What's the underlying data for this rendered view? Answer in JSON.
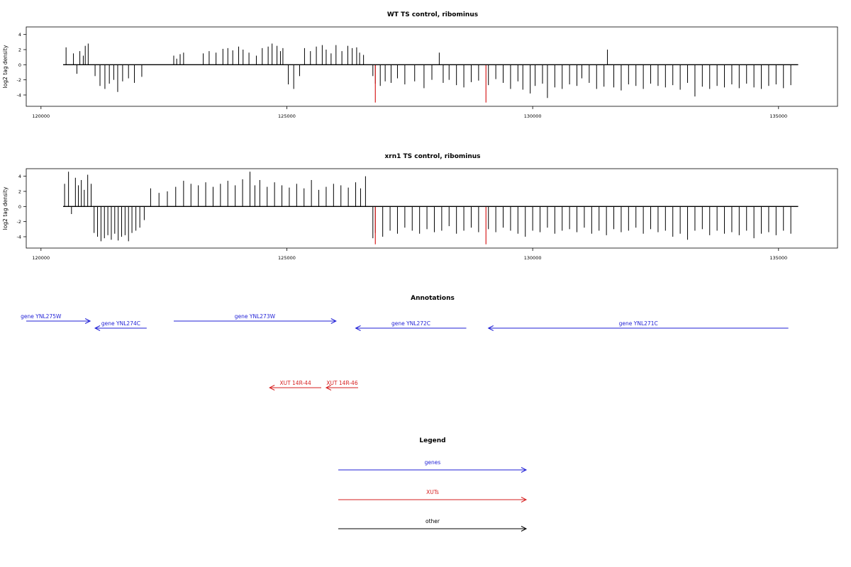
{
  "chart_data": [
    {
      "type": "bar",
      "title": "WT TS control, ribominus",
      "ylabel": "log2 tag density",
      "xlim": [
        119700,
        136200
      ],
      "ylim": [
        -5.5,
        5
      ],
      "yticks": [
        -4,
        -2,
        0,
        2,
        4
      ],
      "xticks": [
        120000,
        125000,
        130000,
        135000
      ],
      "xtick_labels": [
        "120000",
        "125000",
        "130000",
        "135000"
      ],
      "grid": false,
      "baseline": {
        "from": 120450,
        "to": 135400
      },
      "x": [
        120510,
        120660,
        120730,
        120790,
        120860,
        120900,
        120960,
        121100,
        121200,
        121300,
        121390,
        121480,
        121560,
        121660,
        121780,
        121900,
        122050,
        122700,
        122760,
        122830,
        122900,
        123300,
        123420,
        123560,
        123700,
        123800,
        123900,
        124020,
        124110,
        124230,
        124380,
        124500,
        124620,
        124700,
        124800,
        124870,
        124920,
        125030,
        125140,
        125260,
        125360,
        125480,
        125600,
        125720,
        125800,
        125900,
        126000,
        126120,
        126240,
        126330,
        126420,
        126480,
        126560,
        126750,
        126800,
        126900,
        127000,
        127120,
        127250,
        127400,
        127600,
        127790,
        127950,
        128100,
        128180,
        128300,
        128450,
        128600,
        128750,
        128900,
        129100,
        129250,
        129400,
        129550,
        129700,
        129800,
        129950,
        130050,
        130200,
        130300,
        130450,
        130600,
        130750,
        130900,
        131000,
        131150,
        131300,
        131450,
        131520,
        131650,
        131800,
        131950,
        132100,
        132250,
        132400,
        132550,
        132700,
        132850,
        133000,
        133150,
        133300,
        133450,
        133600,
        133750,
        133900,
        134050,
        134200,
        134350,
        134500,
        134650,
        134800,
        134950,
        135100,
        135250
      ],
      "series": [
        {
          "values": [
            2.3,
            1.5,
            -1.2,
            1.8,
            1.2,
            2.5,
            2.8,
            -1.5,
            -2.8,
            -3.2,
            -2.5,
            -2,
            -3.6,
            -2.2,
            -1.8,
            -2.4,
            -1.6,
            1.2,
            0.8,
            1.4,
            1.6,
            1.5,
            1.8,
            1.6,
            2.1,
            2.2,
            1.9,
            2.4,
            2.0,
            1.6,
            1.2,
            2.2,
            2.4,
            2.8,
            2.5,
            1.8,
            2.2,
            -2.6,
            -3.2,
            -1.5,
            2.2,
            1.8,
            2.4,
            2.6,
            2.0,
            1.5,
            2.6,
            1.8,
            2.5,
            2.2,
            2.3,
            1.6,
            1.3,
            -1.5,
            -2.5,
            -2.8,
            -2.2,
            -2.4,
            -1.8,
            -2.6,
            -2.2,
            -3.1,
            -2.0,
            1.6,
            -2.4,
            -2.0,
            -2.7,
            -3.0,
            -2.3,
            -2.1,
            -2.7,
            -1.9,
            -2.4,
            -3.2,
            -2.2,
            -3.3,
            -3.8,
            -2.8,
            -2.5,
            -4.4,
            -3.0,
            -3.2,
            -2.6,
            -2.8,
            -1.8,
            -2.4,
            -3.2,
            -2.9,
            2.0,
            -3.0,
            -3.4,
            -2.6,
            -2.8,
            -3.2,
            -2.5,
            -2.8,
            -3.0,
            -2.7,
            -3.3,
            -2.4,
            -4.2,
            -2.9,
            -3.2,
            -2.8,
            -3.0,
            -2.6,
            -3.1,
            -2.5,
            -3.0,
            -3.2,
            -2.8,
            -2.6,
            -3.1,
            -2.7
          ]
        }
      ],
      "highlights": [
        {
          "x": 126800,
          "value": -5.0
        },
        {
          "x": 129050,
          "value": -5.0
        }
      ],
      "colors": {
        "bars": "#000000",
        "highlight": "#d61f1f"
      }
    },
    {
      "type": "bar",
      "title": "xrn1 TS control, ribominus",
      "ylabel": "log2 tag density",
      "xlim": [
        119700,
        136200
      ],
      "ylim": [
        -5.5,
        5
      ],
      "yticks": [
        -4,
        -2,
        0,
        2,
        4
      ],
      "xticks": [
        120000,
        125000,
        130000,
        135000
      ],
      "xtick_labels": [
        "120000",
        "125000",
        "130000",
        "135000"
      ],
      "grid": false,
      "baseline": {
        "from": 120450,
        "to": 135400
      },
      "x": [
        120480,
        120560,
        120620,
        120700,
        120760,
        120820,
        120880,
        120950,
        121020,
        121080,
        121150,
        121220,
        121290,
        121360,
        121430,
        121500,
        121570,
        121640,
        121710,
        121780,
        121850,
        121930,
        122010,
        122100,
        122230,
        122400,
        122570,
        122740,
        122900,
        123050,
        123200,
        123350,
        123500,
        123650,
        123800,
        123950,
        124100,
        124250,
        124350,
        124450,
        124600,
        124750,
        124900,
        125050,
        125200,
        125350,
        125500,
        125650,
        125800,
        125950,
        126100,
        126250,
        126400,
        126500,
        126600,
        126750,
        126800,
        126950,
        127100,
        127250,
        127400,
        127550,
        127700,
        127850,
        128000,
        128150,
        128300,
        128450,
        128600,
        128750,
        128900,
        129100,
        129250,
        129400,
        129550,
        129700,
        129850,
        130000,
        130150,
        130300,
        130450,
        130600,
        130750,
        130900,
        131050,
        131200,
        131350,
        131500,
        131650,
        131800,
        131950,
        132100,
        132250,
        132400,
        132550,
        132700,
        132850,
        133000,
        133150,
        133300,
        133450,
        133600,
        133750,
        133900,
        134050,
        134200,
        134350,
        134500,
        134650,
        134800,
        134950,
        135100,
        135250
      ],
      "series": [
        {
          "values": [
            3.0,
            4.6,
            -1.0,
            3.8,
            2.8,
            3.5,
            2.2,
            4.2,
            3.0,
            -3.5,
            -4.0,
            -4.6,
            -4.2,
            -3.8,
            -4.4,
            -3.6,
            -4.5,
            -4.0,
            -3.8,
            -4.6,
            -3.5,
            -3.2,
            -2.8,
            -1.8,
            2.4,
            1.8,
            2.0,
            2.6,
            3.4,
            3.0,
            2.8,
            3.2,
            2.6,
            3.0,
            3.4,
            2.8,
            3.6,
            4.6,
            2.8,
            3.5,
            2.6,
            3.2,
            2.8,
            2.5,
            3.0,
            2.4,
            3.5,
            2.2,
            2.6,
            3.0,
            2.8,
            2.5,
            3.2,
            2.4,
            4.0,
            -4.2,
            -3.5,
            -4.0,
            -3.2,
            -3.6,
            -2.8,
            -3.2,
            -3.6,
            -3.0,
            -3.4,
            -3.2,
            -2.6,
            -3.6,
            -3.2,
            -2.8,
            -3.4,
            -3.0,
            -3.4,
            -2.8,
            -3.2,
            -3.6,
            -4.0,
            -3.2,
            -3.4,
            -2.8,
            -3.6,
            -3.2,
            -3.0,
            -3.4,
            -2.8,
            -3.6,
            -3.2,
            -3.8,
            -3.0,
            -3.4,
            -3.2,
            -2.8,
            -3.6,
            -3.0,
            -3.4,
            -3.2,
            -4.0,
            -3.6,
            -4.4,
            -3.2,
            -3.0,
            -3.8,
            -3.2,
            -3.6,
            -3.4,
            -3.8,
            -3.2,
            -4.2,
            -3.6,
            -3.4,
            -3.8,
            -3.2,
            -3.6
          ]
        }
      ],
      "highlights": [
        {
          "x": 126800,
          "value": -5.0
        },
        {
          "x": 129050,
          "value": -5.0
        }
      ],
      "colors": {
        "bars": "#000000",
        "highlight": "#d61f1f"
      }
    }
  ],
  "annotations": {
    "title": "Annotations",
    "xlim": [
      119700,
      136200
    ],
    "genes": [
      {
        "label": "gene YNL275W",
        "start": 119700,
        "end": 121000,
        "direction": "right",
        "row": 1,
        "label_x": 120000
      },
      {
        "label": "gene YNL274C",
        "start": 121100,
        "end": 122150,
        "direction": "left",
        "row": 2,
        "label_x": 121625
      },
      {
        "label": "gene YNL273W",
        "start": 122700,
        "end": 126000,
        "direction": "right",
        "row": 1,
        "label_x": 124350
      },
      {
        "label": "gene YNL272C",
        "start": 126400,
        "end": 128650,
        "direction": "left",
        "row": 2,
        "label_x": 127525
      },
      {
        "label": "gene YNL271C",
        "start": 129100,
        "end": 135200,
        "direction": "left",
        "row": 2,
        "label_x": 132150
      }
    ],
    "xuts": [
      {
        "label": "XUT 14R-44",
        "start": 124650,
        "end": 125700,
        "direction": "left",
        "label_x": 125175
      },
      {
        "label": "XUT 14R-46",
        "start": 125800,
        "end": 126450,
        "direction": "left",
        "label_x": 126125
      }
    ]
  },
  "legend": {
    "title": "Legend",
    "items": [
      {
        "label": "genes",
        "color": "#1f1fd6"
      },
      {
        "label": "XUTs",
        "color": "#d61f1f"
      },
      {
        "label": "other",
        "color": "#000000"
      }
    ]
  },
  "colors": {
    "genes": "#1f1fd6",
    "xuts": "#d61f1f",
    "other": "#000000"
  }
}
